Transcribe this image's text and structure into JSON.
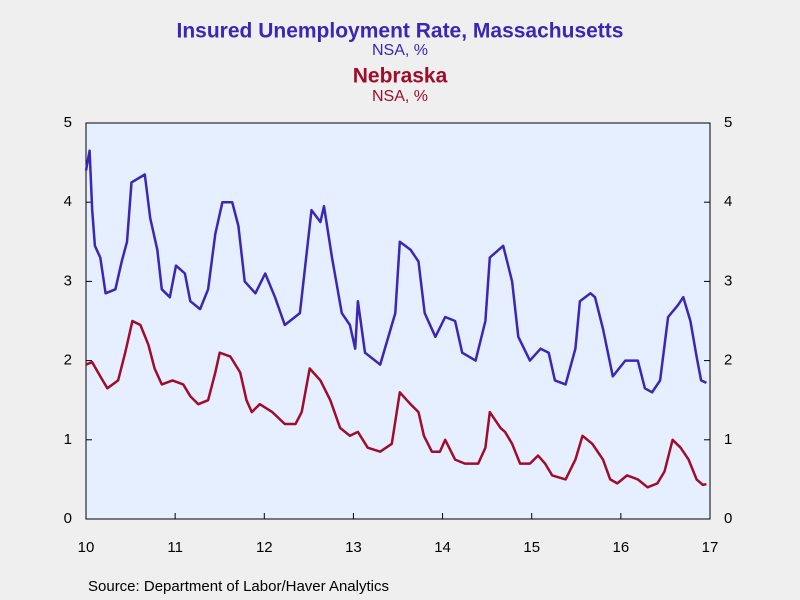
{
  "chart_data": {
    "type": "line",
    "title": "Insured Unemployment Rate, Massachusetts",
    "subtitle": "NSA, %",
    "title2": "Nebraska",
    "subtitle2": "NSA, %",
    "source": "Source:  Department of Labor/Haver Analytics",
    "xlim": [
      10,
      17
    ],
    "xticks": [
      10,
      11,
      12,
      13,
      14,
      15,
      16,
      17
    ],
    "ylim": [
      0,
      5
    ],
    "yticks": [
      0,
      1,
      2,
      3,
      4,
      5
    ],
    "series": [
      {
        "name": "Massachusetts",
        "color": "#3b26b5",
        "x": [
          10.0,
          10.04,
          10.07,
          10.1,
          10.16,
          10.22,
          10.33,
          10.4,
          10.46,
          10.51,
          10.66,
          10.72,
          10.8,
          10.85,
          10.94,
          11.01,
          11.11,
          11.17,
          11.28,
          11.37,
          11.45,
          11.53,
          11.64,
          11.71,
          11.78,
          11.9,
          12.01,
          12.12,
          12.23,
          12.4,
          12.53,
          12.63,
          12.67,
          12.76,
          12.87,
          12.96,
          13.02,
          13.05,
          13.13,
          13.3,
          13.47,
          13.52,
          13.64,
          13.73,
          13.8,
          13.92,
          14.03,
          14.14,
          14.22,
          14.37,
          14.48,
          14.53,
          14.68,
          14.78,
          14.85,
          14.98,
          15.1,
          15.19,
          15.26,
          15.38,
          15.49,
          15.54,
          15.66,
          15.71,
          15.8,
          15.91,
          16.05,
          16.19,
          16.27,
          16.35,
          16.44,
          16.53,
          16.64,
          16.7,
          16.78,
          16.85,
          16.9,
          16.96
        ],
        "values": [
          4.4,
          4.65,
          3.9,
          3.45,
          3.3,
          2.85,
          2.9,
          3.25,
          3.5,
          4.25,
          4.35,
          3.8,
          3.4,
          2.9,
          2.8,
          3.2,
          3.1,
          2.75,
          2.65,
          2.9,
          3.6,
          4.0,
          4.0,
          3.7,
          3.0,
          2.85,
          3.1,
          2.8,
          2.45,
          2.6,
          3.9,
          3.75,
          3.95,
          3.3,
          2.6,
          2.45,
          2.15,
          2.75,
          2.1,
          1.95,
          2.6,
          3.5,
          3.4,
          3.25,
          2.6,
          2.3,
          2.55,
          2.5,
          2.1,
          2.0,
          2.5,
          3.3,
          3.45,
          3.0,
          2.3,
          2.0,
          2.15,
          2.1,
          1.75,
          1.7,
          2.15,
          2.75,
          2.85,
          2.8,
          2.4,
          1.8,
          2.0,
          2.0,
          1.65,
          1.6,
          1.75,
          2.55,
          2.7,
          2.8,
          2.5,
          2.05,
          1.75,
          1.72
        ]
      },
      {
        "name": "Nebraska",
        "color": "#a00d2a",
        "x": [
          10.0,
          10.07,
          10.11,
          10.16,
          10.24,
          10.36,
          10.44,
          10.52,
          10.61,
          10.7,
          10.77,
          10.85,
          10.97,
          11.09,
          11.17,
          11.26,
          11.37,
          11.45,
          11.5,
          11.62,
          11.73,
          11.8,
          11.86,
          11.95,
          12.09,
          12.23,
          12.35,
          12.42,
          12.51,
          12.63,
          12.74,
          12.85,
          12.96,
          13.05,
          13.16,
          13.3,
          13.43,
          13.52,
          13.64,
          13.73,
          13.79,
          13.88,
          13.97,
          14.03,
          14.14,
          14.25,
          14.4,
          14.48,
          14.53,
          14.65,
          14.7,
          14.78,
          14.87,
          14.98,
          15.07,
          15.15,
          15.23,
          15.38,
          15.49,
          15.57,
          15.68,
          15.8,
          15.88,
          15.96,
          16.07,
          16.19,
          16.3,
          16.41,
          16.49,
          16.58,
          16.67,
          16.76,
          16.85,
          16.92,
          16.96
        ],
        "values": [
          1.95,
          1.98,
          1.9,
          1.8,
          1.65,
          1.75,
          2.1,
          2.5,
          2.45,
          2.2,
          1.9,
          1.7,
          1.75,
          1.7,
          1.55,
          1.45,
          1.5,
          1.85,
          2.1,
          2.05,
          1.85,
          1.5,
          1.35,
          1.45,
          1.35,
          1.2,
          1.2,
          1.35,
          1.9,
          1.75,
          1.5,
          1.15,
          1.05,
          1.1,
          0.9,
          0.85,
          0.95,
          1.6,
          1.45,
          1.35,
          1.05,
          0.85,
          0.85,
          1.0,
          0.75,
          0.7,
          0.7,
          0.9,
          1.35,
          1.15,
          1.1,
          0.95,
          0.7,
          0.7,
          0.8,
          0.7,
          0.55,
          0.5,
          0.75,
          1.05,
          0.95,
          0.75,
          0.5,
          0.45,
          0.55,
          0.5,
          0.4,
          0.45,
          0.6,
          1.0,
          0.9,
          0.75,
          0.5,
          0.43,
          0.44
        ]
      }
    ]
  }
}
